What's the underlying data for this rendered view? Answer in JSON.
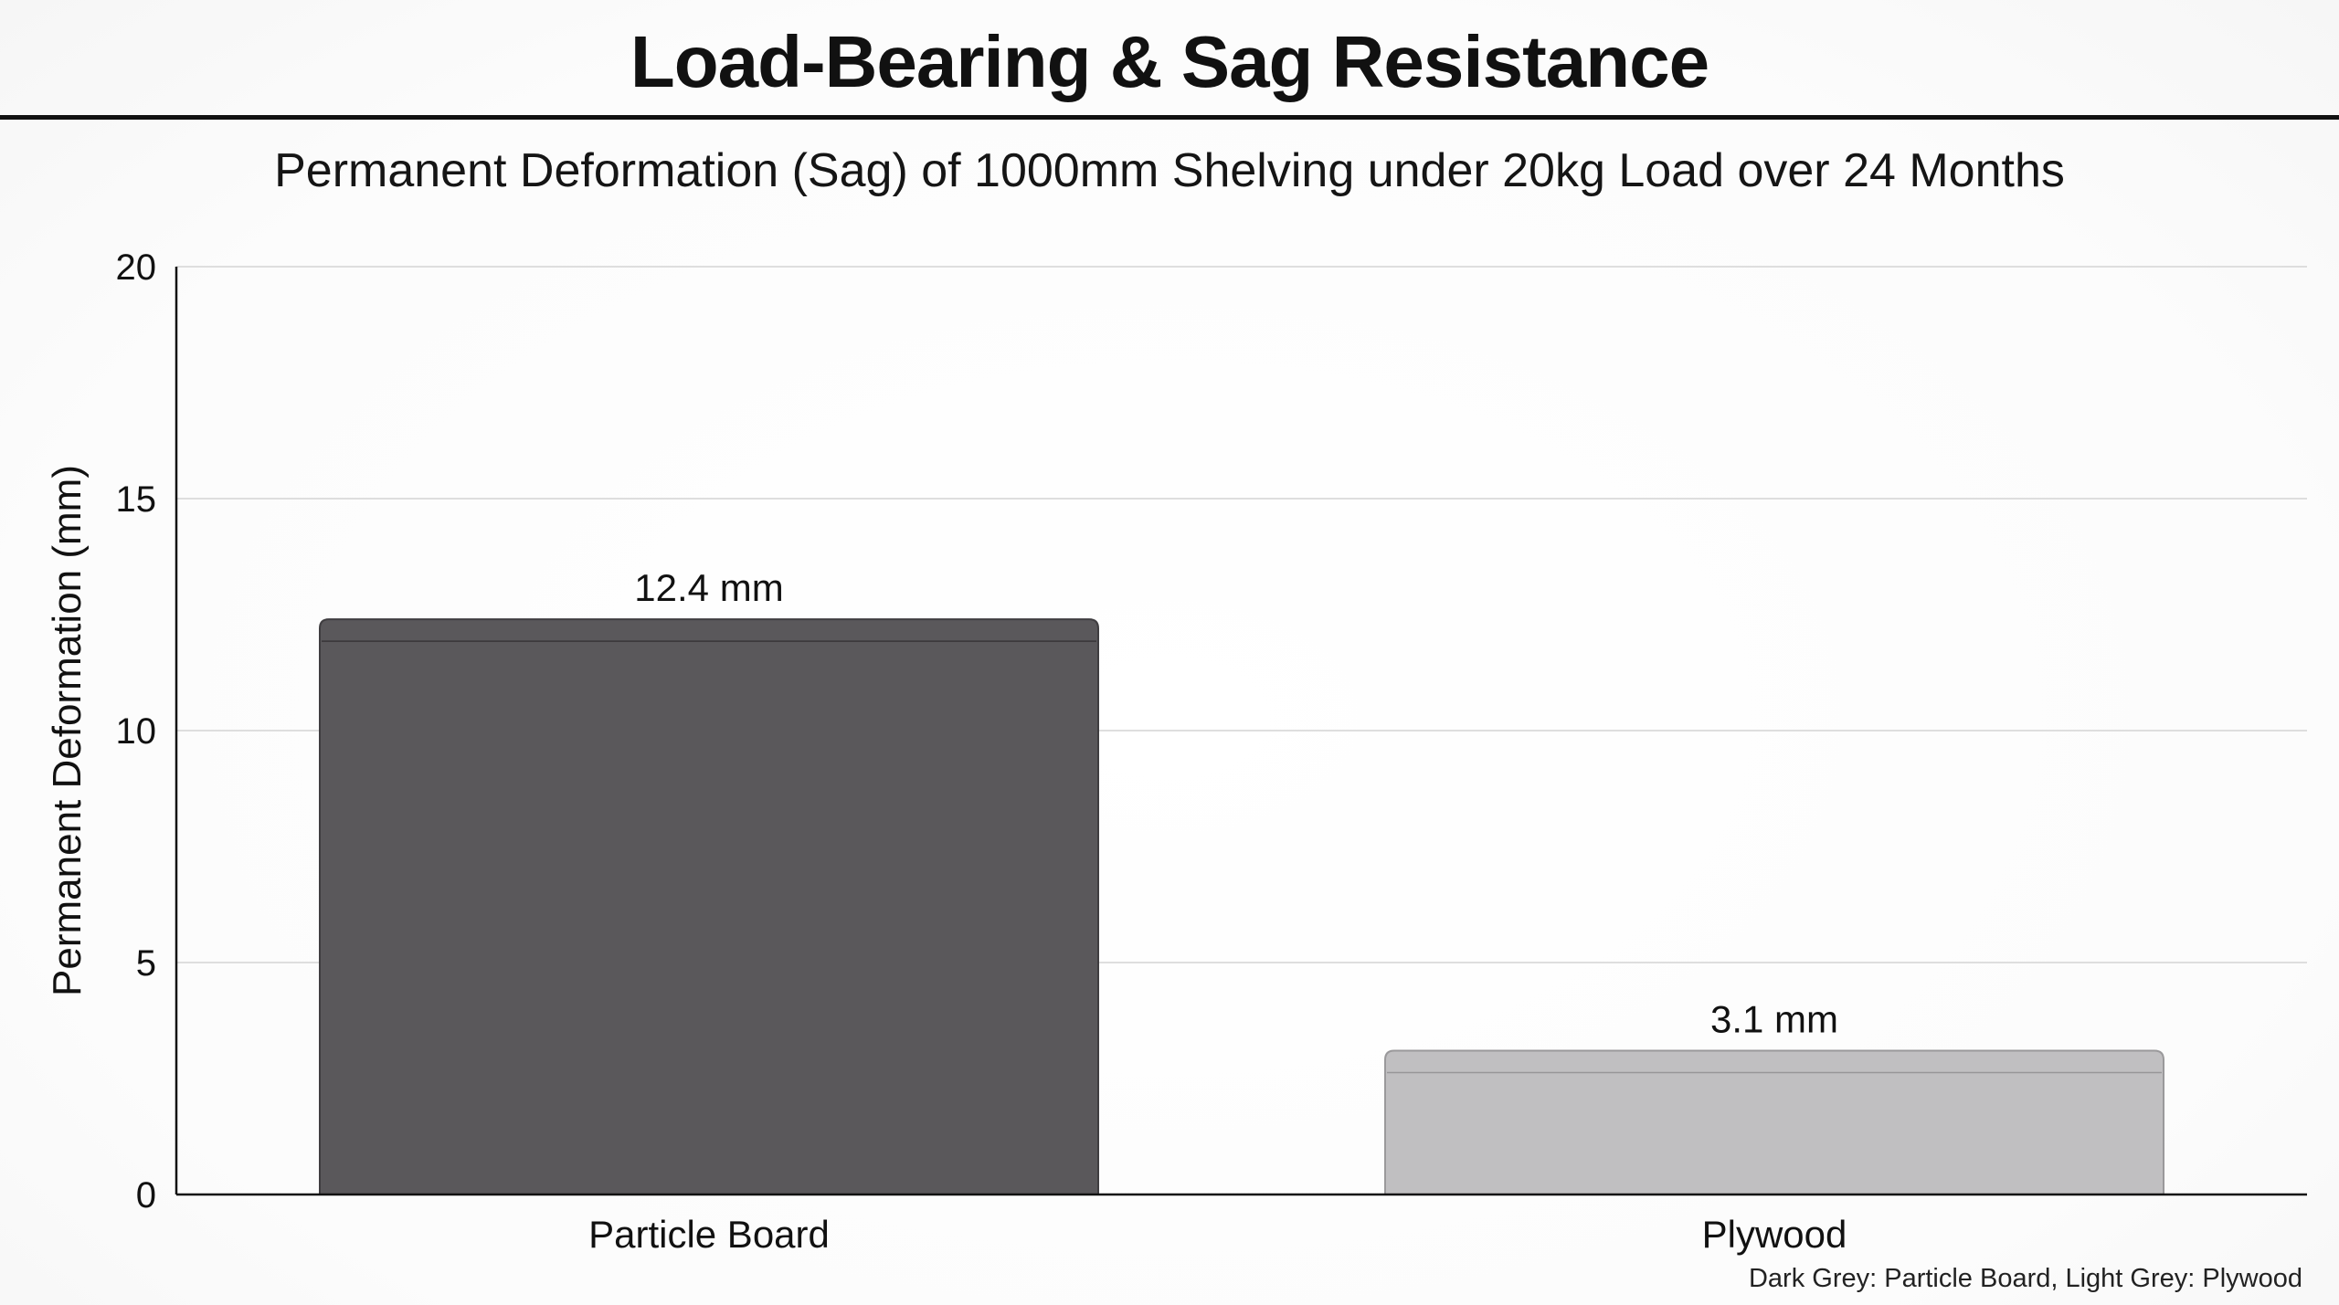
{
  "header": {
    "title": "Load-Bearing & Sag Resistance"
  },
  "chart_data": {
    "type": "bar",
    "title": "Permanent Deformation (Sag) of 1000mm Shelving under 20kg Load over 24 Months",
    "xlabel": "",
    "ylabel": "Permanent Deformation (mm)",
    "categories": [
      "Particle Board",
      "Plywood"
    ],
    "values": [
      12.4,
      3.1
    ],
    "data_labels": [
      "12.4 mm",
      "3.1 mm"
    ],
    "bar_colors": [
      "#5a585b",
      "#c0bfc1"
    ],
    "ylim": [
      0,
      20
    ],
    "yticks": [
      0,
      5,
      10,
      15,
      20
    ],
    "grid": true,
    "legend_note": "Dark Grey: Particle Board, Light Grey: Plywood"
  }
}
